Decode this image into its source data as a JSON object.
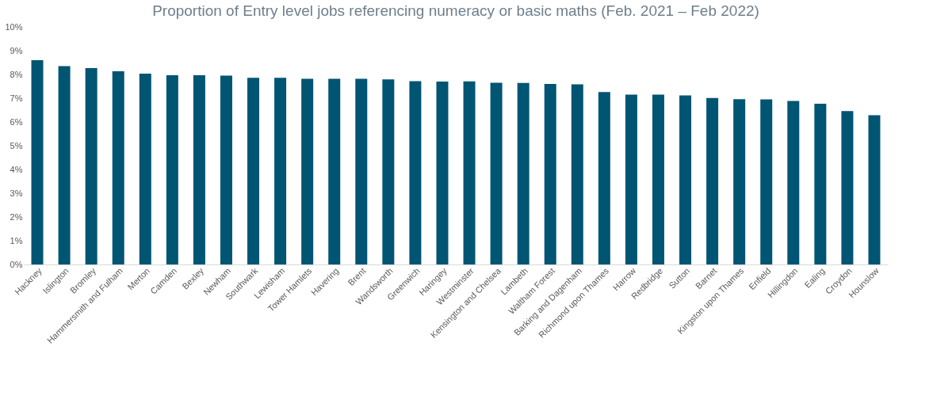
{
  "chart_data": {
    "type": "bar",
    "title": "Proportion of Entry level jobs referencing numeracy or basic maths (Feb. 2021 – Feb 2022)",
    "categories": [
      "Hackney",
      "Islington",
      "Bromley",
      "Hammersmith and Fulham",
      "Merton",
      "Camden",
      "Bexley",
      "Newham",
      "Southwark",
      "Lewisham",
      "Tower Hamlets",
      "Havering",
      "Brent",
      "Wandsworth",
      "Greenwich",
      "Haringey",
      "Westminster",
      "Kensington and Chelsea",
      "Lambeth",
      "Waltham Forest",
      "Barking and Dagenham",
      "Richmond upon Thames",
      "Harrow",
      "Redbridge",
      "Sutton",
      "Barnet",
      "Kingston upon Thames",
      "Enfield",
      "Hillingdon",
      "Ealing",
      "Croydon",
      "Hounslow"
    ],
    "values": [
      8.6,
      8.35,
      8.27,
      8.13,
      8.03,
      7.97,
      7.97,
      7.95,
      7.86,
      7.86,
      7.82,
      7.82,
      7.82,
      7.79,
      7.72,
      7.7,
      7.71,
      7.65,
      7.64,
      7.6,
      7.58,
      7.26,
      7.15,
      7.15,
      7.12,
      7.01,
      6.96,
      6.95,
      6.88,
      6.77,
      6.46,
      6.28
    ],
    "color": "#005573",
    "ylim": [
      0,
      10
    ],
    "yticks": [
      {
        "value": 0,
        "label": "0%"
      },
      {
        "value": 1,
        "label": "1%"
      },
      {
        "value": 2,
        "label": "2%"
      },
      {
        "value": 3,
        "label": "3%"
      },
      {
        "value": 4,
        "label": "4%"
      },
      {
        "value": 5,
        "label": "5%"
      },
      {
        "value": 6,
        "label": "6%"
      },
      {
        "value": 7,
        "label": "7%"
      },
      {
        "value": 8,
        "label": "8%"
      },
      {
        "value": 9,
        "label": "9%"
      },
      {
        "value": 10,
        "label": "10%"
      }
    ],
    "grid": false
  }
}
